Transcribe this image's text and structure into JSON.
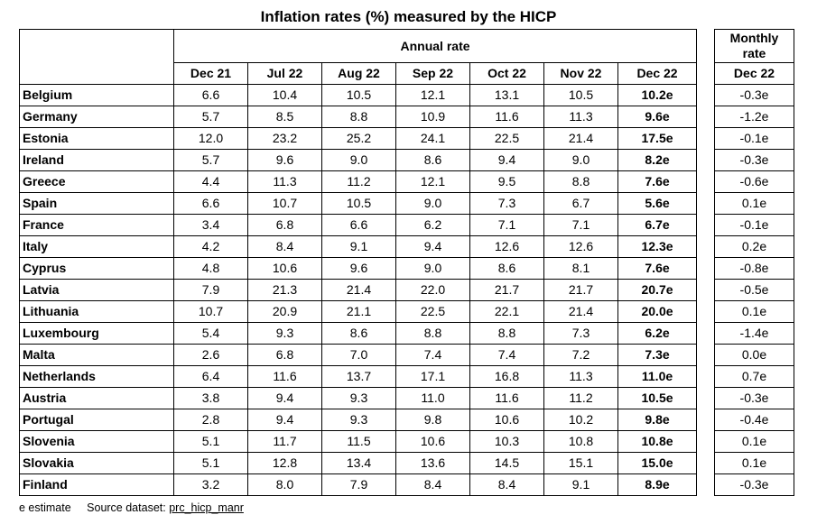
{
  "title": "Inflation rates (%) measured by the HICP",
  "header": {
    "annual_rate": "Annual rate",
    "monthly_rate_line1": "Monthly",
    "monthly_rate_line2": "rate",
    "months": [
      "Dec 21",
      "Jul 22",
      "Aug 22",
      "Sep 22",
      "Oct 22",
      "Nov 22",
      "Dec 22"
    ],
    "monthly_month": "Dec 22"
  },
  "rows": [
    {
      "country": "Belgium",
      "values": [
        "6.6",
        "10.4",
        "10.5",
        "12.1",
        "13.1",
        "10.5",
        "10.2e"
      ],
      "monthly": "-0.3e"
    },
    {
      "country": "Germany",
      "values": [
        "5.7",
        "8.5",
        "8.8",
        "10.9",
        "11.6",
        "11.3",
        "9.6e"
      ],
      "monthly": "-1.2e"
    },
    {
      "country": "Estonia",
      "values": [
        "12.0",
        "23.2",
        "25.2",
        "24.1",
        "22.5",
        "21.4",
        "17.5e"
      ],
      "monthly": "-0.1e"
    },
    {
      "country": "Ireland",
      "values": [
        "5.7",
        "9.6",
        "9.0",
        "8.6",
        "9.4",
        "9.0",
        "8.2e"
      ],
      "monthly": "-0.3e"
    },
    {
      "country": "Greece",
      "values": [
        "4.4",
        "11.3",
        "11.2",
        "12.1",
        "9.5",
        "8.8",
        "7.6e"
      ],
      "monthly": "-0.6e"
    },
    {
      "country": "Spain",
      "values": [
        "6.6",
        "10.7",
        "10.5",
        "9.0",
        "7.3",
        "6.7",
        "5.6e"
      ],
      "monthly": "0.1e"
    },
    {
      "country": "France",
      "values": [
        "3.4",
        "6.8",
        "6.6",
        "6.2",
        "7.1",
        "7.1",
        "6.7e"
      ],
      "monthly": "-0.1e"
    },
    {
      "country": "Italy",
      "values": [
        "4.2",
        "8.4",
        "9.1",
        "9.4",
        "12.6",
        "12.6",
        "12.3e"
      ],
      "monthly": "0.2e"
    },
    {
      "country": "Cyprus",
      "values": [
        "4.8",
        "10.6",
        "9.6",
        "9.0",
        "8.6",
        "8.1",
        "7.6e"
      ],
      "monthly": "-0.8e"
    },
    {
      "country": "Latvia",
      "values": [
        "7.9",
        "21.3",
        "21.4",
        "22.0",
        "21.7",
        "21.7",
        "20.7e"
      ],
      "monthly": "-0.5e"
    },
    {
      "country": "Lithuania",
      "values": [
        "10.7",
        "20.9",
        "21.1",
        "22.5",
        "22.1",
        "21.4",
        "20.0e"
      ],
      "monthly": "0.1e"
    },
    {
      "country": "Luxembourg",
      "values": [
        "5.4",
        "9.3",
        "8.6",
        "8.8",
        "8.8",
        "7.3",
        "6.2e"
      ],
      "monthly": "-1.4e"
    },
    {
      "country": "Malta",
      "values": [
        "2.6",
        "6.8",
        "7.0",
        "7.4",
        "7.4",
        "7.2",
        "7.3e"
      ],
      "monthly": "0.0e"
    },
    {
      "country": "Netherlands",
      "values": [
        "6.4",
        "11.6",
        "13.7",
        "17.1",
        "16.8",
        "11.3",
        "11.0e"
      ],
      "monthly": "0.7e"
    },
    {
      "country": "Austria",
      "values": [
        "3.8",
        "9.4",
        "9.3",
        "11.0",
        "11.6",
        "11.2",
        "10.5e"
      ],
      "monthly": "-0.3e"
    },
    {
      "country": "Portugal",
      "values": [
        "2.8",
        "9.4",
        "9.3",
        "9.8",
        "10.6",
        "10.2",
        "9.8e"
      ],
      "monthly": "-0.4e"
    },
    {
      "country": "Slovenia",
      "values": [
        "5.1",
        "11.7",
        "11.5",
        "10.6",
        "10.3",
        "10.8",
        "10.8e"
      ],
      "monthly": "0.1e"
    },
    {
      "country": "Slovakia",
      "values": [
        "5.1",
        "12.8",
        "13.4",
        "13.6",
        "14.5",
        "15.1",
        "15.0e"
      ],
      "monthly": "0.1e"
    },
    {
      "country": "Finland",
      "values": [
        "3.2",
        "8.0",
        "7.9",
        "8.4",
        "8.4",
        "9.1",
        "8.9e"
      ],
      "monthly": "-0.3e"
    }
  ],
  "footer": {
    "note": "e estimate",
    "source_label": "Source dataset:",
    "source_link": "prc_hicp_manr"
  }
}
